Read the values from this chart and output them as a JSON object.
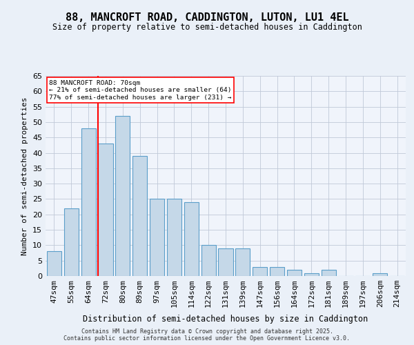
{
  "title": "88, MANCROFT ROAD, CADDINGTON, LUTON, LU1 4EL",
  "subtitle": "Size of property relative to semi-detached houses in Caddington",
  "xlabel": "Distribution of semi-detached houses by size in Caddington",
  "ylabel": "Number of semi-detached properties",
  "categories": [
    "47sqm",
    "55sqm",
    "64sqm",
    "72sqm",
    "80sqm",
    "89sqm",
    "97sqm",
    "105sqm",
    "114sqm",
    "122sqm",
    "131sqm",
    "139sqm",
    "147sqm",
    "156sqm",
    "164sqm",
    "172sqm",
    "181sqm",
    "189sqm",
    "197sqm",
    "206sqm",
    "214sqm"
  ],
  "values": [
    8,
    22,
    48,
    43,
    52,
    39,
    25,
    25,
    24,
    10,
    9,
    9,
    3,
    3,
    2,
    1,
    2,
    0,
    0,
    1,
    0
  ],
  "bar_color": "#c5d8e8",
  "bar_edge_color": "#5a9ec9",
  "red_line_index": 3,
  "annotation_title": "88 MANCROFT ROAD: 70sqm",
  "annotation_line1": "← 21% of semi-detached houses are smaller (64)",
  "annotation_line2": "77% of semi-detached houses are larger (231) →",
  "ylim": [
    0,
    65
  ],
  "yticks": [
    0,
    5,
    10,
    15,
    20,
    25,
    30,
    35,
    40,
    45,
    50,
    55,
    60,
    65
  ],
  "footer_line1": "Contains HM Land Registry data © Crown copyright and database right 2025.",
  "footer_line2": "Contains public sector information licensed under the Open Government Licence v3.0.",
  "bg_color": "#eaf0f8",
  "plot_bg_color": "#f0f4fb"
}
